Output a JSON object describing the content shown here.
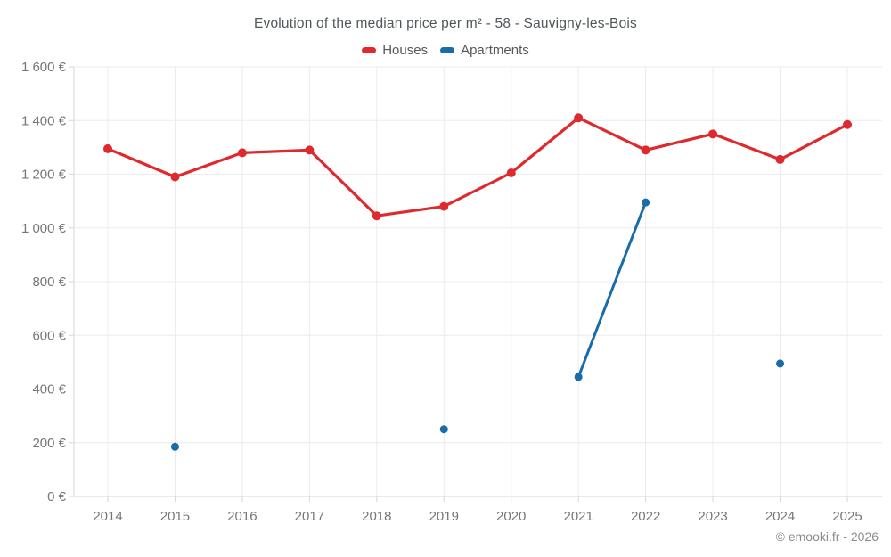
{
  "header": {
    "title": "Evolution of the median price per m² - 58 - Sauvigny-les-Bois",
    "credit": "© emooki.fr - 2026"
  },
  "legend": [
    {
      "label": "Houses",
      "color": "#de2a2e"
    },
    {
      "label": "Apartments",
      "color": "#1a6ca8"
    }
  ],
  "chart_data": {
    "type": "line",
    "title": "Evolution of the median price per m² - 58 - Sauvigny-les-Bois",
    "categories": [
      "2014",
      "2015",
      "2016",
      "2017",
      "2018",
      "2019",
      "2020",
      "2021",
      "2022",
      "2023",
      "2024",
      "2025"
    ],
    "series": [
      {
        "name": "Houses",
        "color": "#de2a2e",
        "values": [
          1295,
          1190,
          1280,
          1290,
          1045,
          1080,
          1205,
          1410,
          1290,
          1350,
          1255,
          1385
        ]
      },
      {
        "name": "Apartments",
        "color": "#1a6ca8",
        "values": [
          null,
          185,
          null,
          null,
          null,
          250,
          null,
          445,
          1095,
          null,
          495,
          null
        ]
      }
    ],
    "xlabel": "",
    "ylabel": "",
    "ylim": [
      0,
      1600
    ],
    "y_ticks": [
      0,
      200,
      400,
      600,
      800,
      1000,
      1200,
      1400,
      1600
    ],
    "y_tick_labels": [
      "0 €",
      "200 €",
      "400 €",
      "600 €",
      "800 €",
      "1 000 €",
      "1 200 €",
      "1 400 €",
      "1 600 €"
    ],
    "grid": true,
    "legend_position": "top",
    "colors": {
      "grid": "#ececec",
      "axis": "#d6d6d6",
      "tick_text": "#767676"
    }
  }
}
